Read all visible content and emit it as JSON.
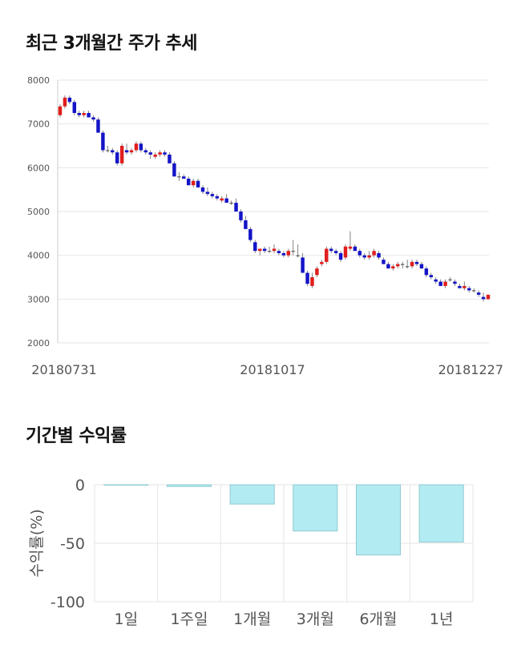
{
  "titles": {
    "price_chart": "최근 3개월간 주가 추세",
    "returns_chart": "기간별 수익률"
  },
  "colors": {
    "up": "#e11d1d",
    "down": "#1414c8",
    "bar_fill": "#b2ebf2",
    "bar_stroke": "#8fc9d1",
    "grid": "#e6e6e6"
  },
  "chart_data": [
    {
      "type": "candlestick",
      "title": "최근 3개월간 주가 추세",
      "ylim": [
        2000,
        8000
      ],
      "yticks": [
        "8000",
        "7000",
        "6000",
        "5000",
        "4000",
        "3000",
        "2000"
      ],
      "xtick_labels": [
        "20180731",
        "20181017",
        "20181227"
      ],
      "grid": true,
      "ohlc": [
        [
          7200,
          7450,
          7150,
          7400
        ],
        [
          7400,
          7650,
          7350,
          7600
        ],
        [
          7600,
          7650,
          7450,
          7500
        ],
        [
          7500,
          7550,
          7200,
          7250
        ],
        [
          7250,
          7300,
          7150,
          7200
        ],
        [
          7200,
          7300,
          7150,
          7250
        ],
        [
          7250,
          7300,
          7150,
          7150
        ],
        [
          7150,
          7200,
          7050,
          7100
        ],
        [
          7100,
          7150,
          6800,
          6800
        ],
        [
          6800,
          6850,
          6350,
          6400
        ],
        [
          6400,
          6500,
          6350,
          6400
        ],
        [
          6400,
          6450,
          6300,
          6350
        ],
        [
          6350,
          6400,
          6050,
          6100
        ],
        [
          6100,
          6550,
          6050,
          6500
        ],
        [
          6400,
          6550,
          6300,
          6350
        ],
        [
          6350,
          6450,
          6300,
          6400
        ],
        [
          6400,
          6600,
          6350,
          6550
        ],
        [
          6550,
          6600,
          6350,
          6400
        ],
        [
          6400,
          6450,
          6300,
          6350
        ],
        [
          6350,
          6400,
          6200,
          6300
        ],
        [
          6250,
          6350,
          6200,
          6300
        ],
        [
          6300,
          6400,
          6250,
          6350
        ],
        [
          6350,
          6400,
          6250,
          6300
        ],
        [
          6300,
          6350,
          6100,
          6100
        ],
        [
          6100,
          6150,
          5800,
          5800
        ],
        [
          5800,
          5900,
          5700,
          5800
        ],
        [
          5800,
          5850,
          5750,
          5750
        ],
        [
          5750,
          5800,
          5600,
          5600
        ],
        [
          5600,
          5750,
          5550,
          5700
        ],
        [
          5700,
          5750,
          5550,
          5550
        ],
        [
          5550,
          5600,
          5400,
          5450
        ],
        [
          5450,
          5550,
          5350,
          5400
        ],
        [
          5400,
          5450,
          5300,
          5350
        ],
        [
          5350,
          5400,
          5250,
          5300
        ],
        [
          5250,
          5350,
          5200,
          5300
        ],
        [
          5300,
          5400,
          5200,
          5200
        ],
        [
          5200,
          5250,
          5150,
          5200
        ],
        [
          5200,
          5300,
          5000,
          5000
        ],
        [
          5000,
          5050,
          4750,
          4800
        ],
        [
          4800,
          4900,
          4600,
          4600
        ],
        [
          4600,
          4650,
          4300,
          4350
        ],
        [
          4300,
          4350,
          4050,
          4100
        ],
        [
          4100,
          4150,
          4000,
          4150
        ],
        [
          4150,
          4200,
          4050,
          4100
        ],
        [
          4100,
          4200,
          4050,
          4100
        ],
        [
          4100,
          4250,
          4050,
          4150
        ],
        [
          4100,
          4150,
          4000,
          4050
        ],
        [
          4050,
          4100,
          3950,
          4000
        ],
        [
          4000,
          4150,
          3950,
          4100
        ],
        [
          4100,
          4350,
          4000,
          4100
        ],
        [
          4000,
          4250,
          3950,
          4000
        ],
        [
          3950,
          4050,
          3600,
          3600
        ],
        [
          3600,
          3650,
          3300,
          3350
        ],
        [
          3300,
          3600,
          3250,
          3500
        ],
        [
          3550,
          3750,
          3500,
          3700
        ],
        [
          3800,
          3900,
          3750,
          3850
        ],
        [
          3850,
          4200,
          3800,
          4150
        ],
        [
          4150,
          4200,
          4050,
          4100
        ],
        [
          4100,
          4150,
          4000,
          4050
        ],
        [
          4050,
          4100,
          3850,
          3900
        ],
        [
          3950,
          4250,
          3900,
          4200
        ],
        [
          4150,
          4550,
          4100,
          4200
        ],
        [
          4200,
          4250,
          4100,
          4100
        ],
        [
          4100,
          4150,
          3950,
          4000
        ],
        [
          4000,
          4050,
          3900,
          3950
        ],
        [
          3950,
          4100,
          3900,
          4000
        ],
        [
          4000,
          4150,
          3950,
          4100
        ],
        [
          4050,
          4100,
          3900,
          3950
        ],
        [
          3900,
          3950,
          3800,
          3800
        ],
        [
          3800,
          3850,
          3700,
          3700
        ],
        [
          3700,
          3800,
          3650,
          3750
        ],
        [
          3750,
          3850,
          3700,
          3800
        ],
        [
          3800,
          3850,
          3700,
          3800
        ],
        [
          3750,
          3900,
          3700,
          3750
        ],
        [
          3750,
          3900,
          3700,
          3850
        ],
        [
          3850,
          3900,
          3750,
          3800
        ],
        [
          3800,
          3850,
          3700,
          3700
        ],
        [
          3700,
          3750,
          3500,
          3550
        ],
        [
          3550,
          3600,
          3450,
          3500
        ],
        [
          3450,
          3500,
          3350,
          3400
        ],
        [
          3400,
          3450,
          3300,
          3300
        ],
        [
          3300,
          3450,
          3250,
          3400
        ],
        [
          3450,
          3500,
          3400,
          3450
        ],
        [
          3400,
          3450,
          3300,
          3350
        ],
        [
          3300,
          3350,
          3250,
          3250
        ],
        [
          3250,
          3400,
          3200,
          3300
        ],
        [
          3250,
          3300,
          3150,
          3200
        ],
        [
          3200,
          3250,
          3150,
          3200
        ],
        [
          3150,
          3200,
          3050,
          3100
        ],
        [
          3050,
          3150,
          2950,
          3000
        ],
        [
          3000,
          3100,
          2980,
          3100
        ]
      ]
    },
    {
      "type": "bar",
      "title": "기간별 수익률",
      "ylabel": "수익률(%)",
      "ylim": [
        -100,
        0
      ],
      "yticks": [
        "0",
        "-50",
        "-100"
      ],
      "categories": [
        "1일",
        "1주일",
        "1개월",
        "3개월",
        "6개월",
        "1년"
      ],
      "values": [
        0,
        -1.5,
        -16.5,
        -39.5,
        -60,
        -49
      ]
    }
  ]
}
